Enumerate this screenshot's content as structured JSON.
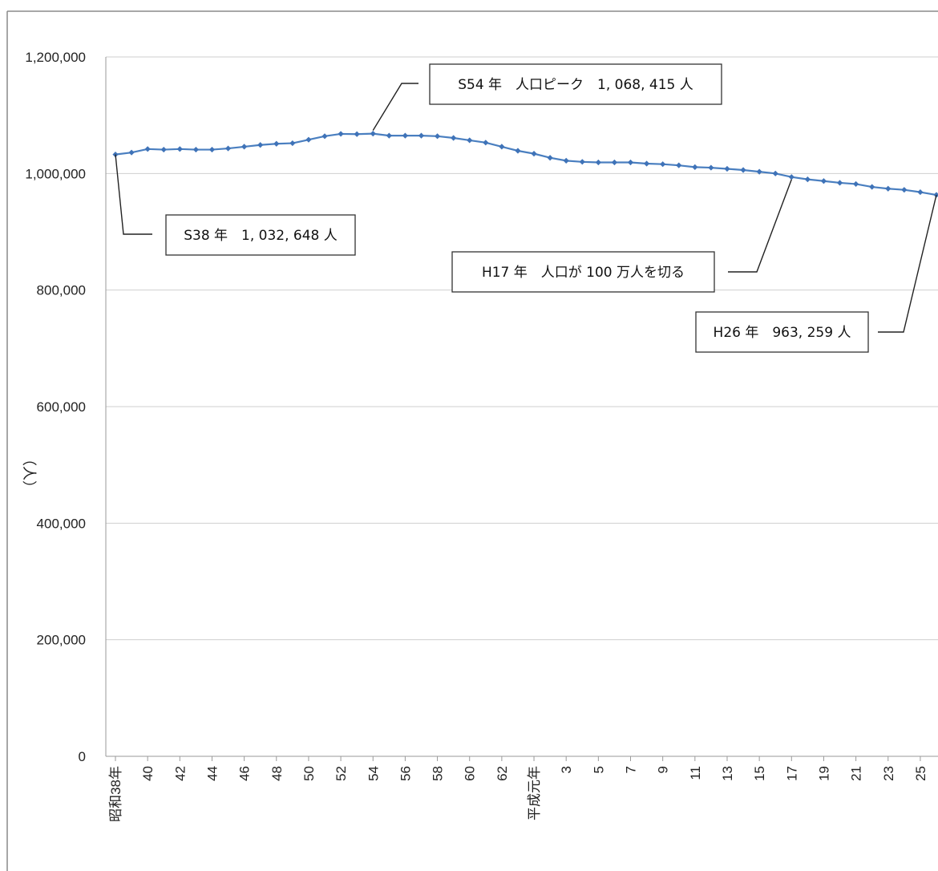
{
  "chart_data": {
    "type": "line",
    "title": "",
    "xlabel": "",
    "ylabel": "（人）",
    "ylim": [
      0,
      1200000
    ],
    "yticks": [
      0,
      200000,
      400000,
      600000,
      800000,
      1000000,
      1200000
    ],
    "ytick_labels": [
      "0",
      "200,000",
      "400,000",
      "600,000",
      "800,000",
      "1,000,000",
      "1,200,000"
    ],
    "grid": true,
    "legend": "none",
    "color": "#4a7fc0",
    "x_tick_labels": [
      "昭和38年",
      "40",
      "42",
      "44",
      "46",
      "48",
      "50",
      "52",
      "54",
      "56",
      "58",
      "60",
      "62",
      "平成元年",
      "3",
      "5",
      "7",
      "9",
      "11",
      "13",
      "15",
      "17",
      "19",
      "21",
      "23",
      "25"
    ],
    "x": [
      "昭和38年",
      "39",
      "40",
      "41",
      "42",
      "43",
      "44",
      "45",
      "46",
      "47",
      "48",
      "49",
      "50",
      "51",
      "52",
      "53",
      "54",
      "55",
      "56",
      "57",
      "58",
      "59",
      "60",
      "61",
      "62",
      "63",
      "平成元年",
      "2",
      "3",
      "4",
      "5",
      "6",
      "7",
      "8",
      "9",
      "10",
      "11",
      "12",
      "13",
      "14",
      "15",
      "16",
      "17",
      "18",
      "19",
      "20",
      "21",
      "22",
      "23",
      "24",
      "25",
      "26"
    ],
    "series": [
      {
        "values": [
          1032648,
          1036000,
          1042000,
          1041000,
          1042000,
          1041000,
          1041000,
          1043000,
          1046000,
          1049000,
          1051000,
          1052000,
          1058000,
          1064000,
          1068000,
          1067500,
          1068415,
          1065000,
          1065000,
          1065000,
          1064000,
          1061000,
          1057000,
          1053000,
          1046000,
          1039000,
          1034000,
          1027000,
          1022000,
          1020000,
          1019000,
          1019000,
          1019000,
          1017000,
          1016000,
          1014000,
          1011000,
          1010000,
          1008000,
          1006000,
          1003000,
          1000000,
          994000,
          990000,
          987000,
          984000,
          982000,
          977000,
          974000,
          972000,
          968000,
          963259
        ]
      }
    ],
    "annotations": [
      {
        "text": "S38 年　1, 032, 648 人",
        "index": 0
      },
      {
        "text": "S54 年　人口ピーク　1, 068, 415 人",
        "index": 16
      },
      {
        "text": "H17 年　人口が 100 万人を切る",
        "index": 42
      },
      {
        "text": "H26 年　963, 259 人",
        "index": 51
      }
    ]
  }
}
